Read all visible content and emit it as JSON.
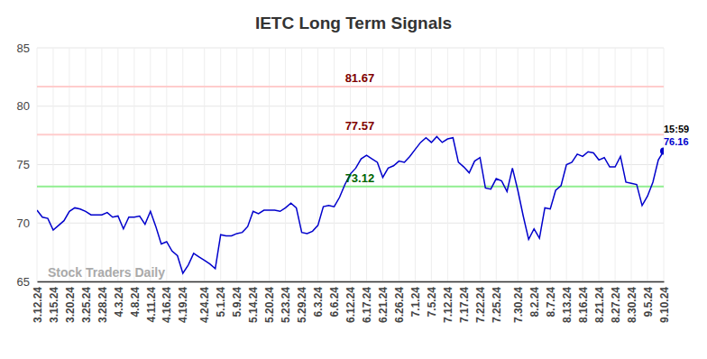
{
  "chart_data": {
    "type": "line",
    "title": "IETC Long Term Signals",
    "watermark": "Stock Traders Daily",
    "last_label": "15:59",
    "color": "#0000cc",
    "grid": true,
    "marker": "circle",
    "ylim": [
      65,
      85
    ],
    "yticks": [
      65,
      70,
      75,
      80,
      85
    ],
    "reference_lines": [
      {
        "value": 81.67,
        "color": "#ffcccc",
        "label_color": "#800000"
      },
      {
        "value": 77.57,
        "color": "#ffcccc",
        "label_color": "#800000"
      },
      {
        "value": 73.12,
        "color": "#90ee90",
        "label_color": "#006400"
      }
    ],
    "categories": [
      "3.12.24",
      null,
      null,
      "3.15.24",
      null,
      null,
      "3.20.24",
      null,
      null,
      "3.25.24",
      null,
      null,
      "3.28.24",
      null,
      null,
      "4.3.24",
      null,
      null,
      "4.8.24",
      null,
      null,
      "4.11.24",
      null,
      null,
      "4.16.24",
      null,
      null,
      "4.19.24",
      null,
      null,
      null,
      "4.24.24",
      null,
      null,
      "5.1.24",
      null,
      null,
      "5.9.24",
      null,
      null,
      "5.14.24",
      null,
      null,
      "5.20.24",
      null,
      null,
      "5.23.24",
      null,
      null,
      "5.29.24",
      null,
      null,
      "6.3.24",
      null,
      null,
      "6.6.24",
      null,
      null,
      "6.12.24",
      null,
      null,
      "6.17.24",
      null,
      null,
      "6.21.24",
      null,
      null,
      "6.26.24",
      null,
      null,
      "7.1.24",
      null,
      null,
      "7.5.24",
      null,
      null,
      "7.12.24",
      null,
      null,
      "7.17.24",
      null,
      null,
      "7.22.24",
      null,
      null,
      "7.25.24",
      null,
      null,
      null,
      "7.30.24",
      null,
      null,
      "8.2.24",
      null,
      null,
      "8.7.24",
      null,
      null,
      "8.13.24",
      null,
      null,
      "8.16.24",
      null,
      null,
      "8.21.24",
      null,
      null,
      "8.27.24",
      null,
      null,
      "8.30.24",
      null,
      null,
      "9.5.24",
      null,
      null,
      "9.10.24"
    ],
    "values": [
      71.1,
      70.5,
      70.4,
      69.4,
      69.8,
      70.2,
      71.0,
      71.3,
      71.2,
      71.0,
      70.7,
      70.7,
      70.7,
      70.9,
      70.5,
      70.6,
      69.5,
      70.5,
      70.5,
      70.6,
      69.9,
      71.0,
      69.7,
      68.2,
      68.4,
      67.6,
      67.2,
      65.7,
      66.4,
      67.4,
      67.1,
      66.8,
      66.5,
      66.1,
      69.0,
      68.9,
      68.9,
      69.1,
      69.2,
      69.7,
      71.0,
      70.8,
      71.1,
      71.1,
      71.1,
      71.0,
      71.3,
      71.7,
      71.3,
      69.2,
      69.1,
      69.3,
      69.8,
      71.4,
      71.5,
      71.4,
      72.2,
      73.3,
      74.2,
      74.7,
      75.5,
      75.8,
      75.5,
      75.2,
      73.9,
      74.7,
      74.9,
      75.3,
      75.2,
      75.7,
      76.3,
      76.9,
      77.3,
      76.9,
      77.4,
      76.9,
      77.2,
      77.3,
      75.2,
      74.8,
      74.3,
      75.3,
      75.6,
      73.0,
      72.9,
      73.8,
      73.6,
      72.7,
      74.7,
      72.8,
      70.6,
      68.6,
      69.5,
      68.7,
      71.3,
      71.2,
      72.8,
      73.2,
      75.0,
      75.2,
      75.9,
      75.7,
      76.1,
      76.0,
      75.4,
      75.6,
      74.8,
      74.8,
      75.7,
      73.5,
      73.4,
      73.3,
      71.5,
      72.3,
      73.5,
      75.4,
      76.16
    ]
  }
}
